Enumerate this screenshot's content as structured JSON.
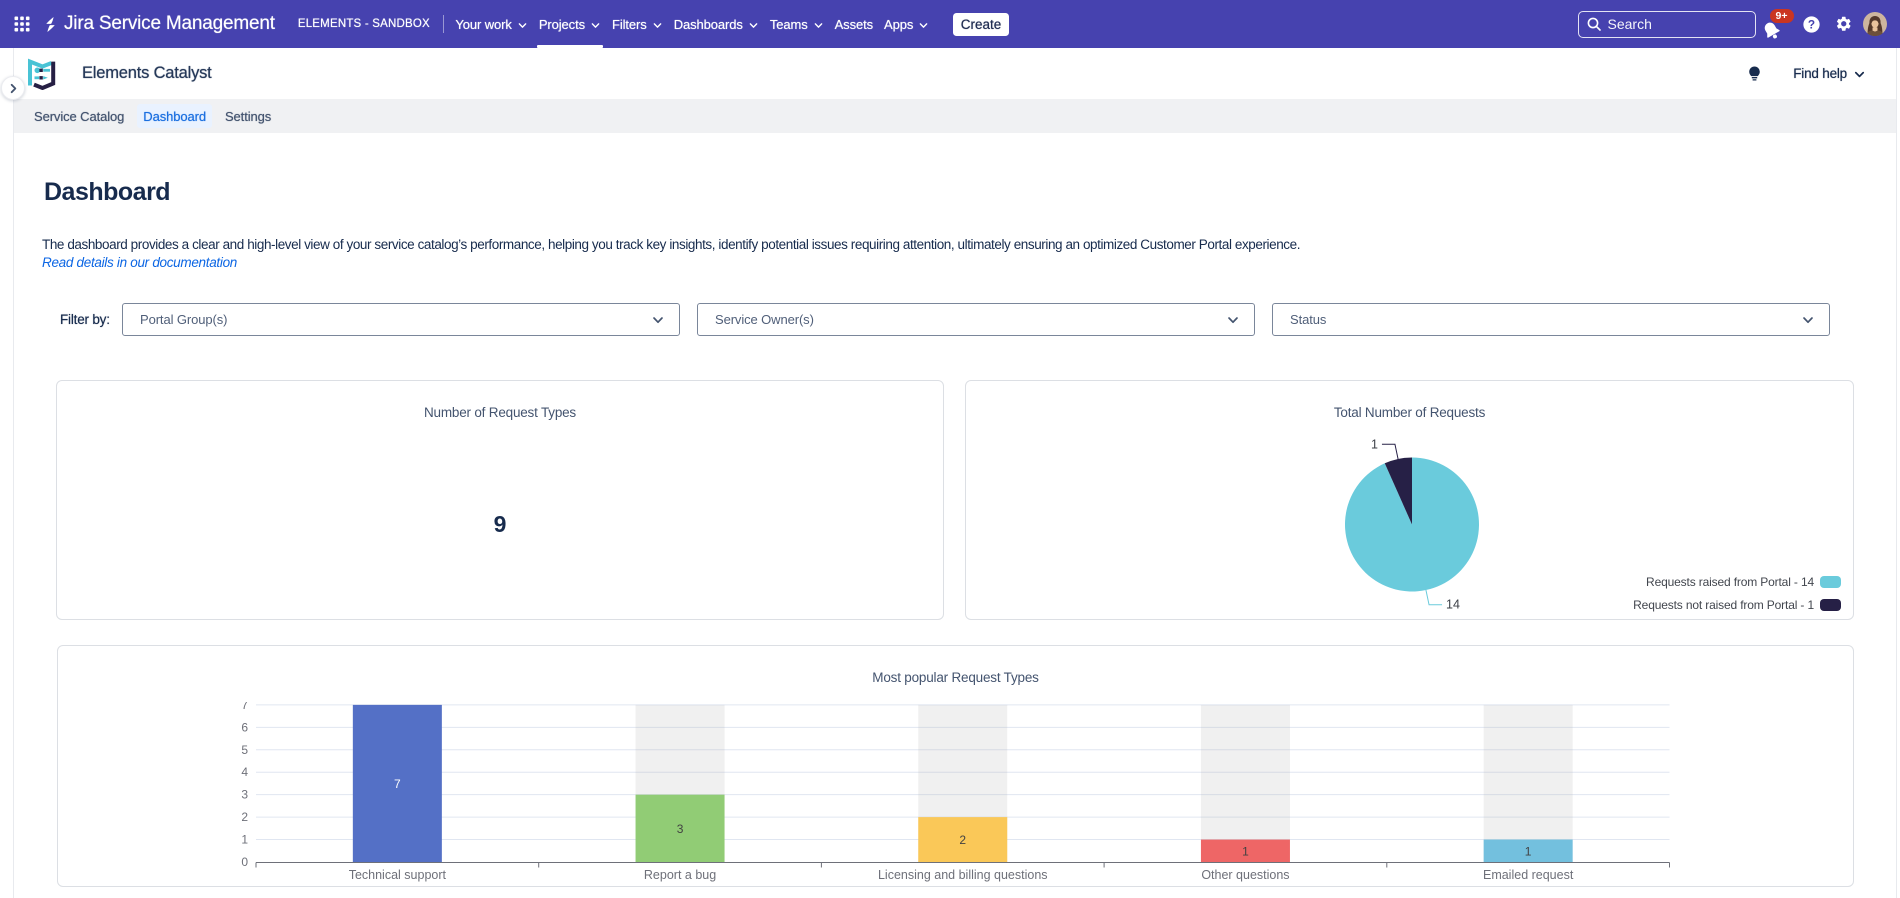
{
  "topbar": {
    "product": "Jira Service Management",
    "environment": "ELEMENTS - SANDBOX",
    "menu": [
      {
        "label": "Your work",
        "chevron": true,
        "active": false
      },
      {
        "label": "Projects",
        "chevron": true,
        "active": true
      },
      {
        "label": "Filters",
        "chevron": true,
        "active": false
      },
      {
        "label": "Dashboards",
        "chevron": true,
        "active": false
      },
      {
        "label": "Teams",
        "chevron": true,
        "active": false
      },
      {
        "label": "Assets",
        "chevron": false,
        "active": false
      },
      {
        "label": "Apps",
        "chevron": true,
        "active": false
      }
    ],
    "create_label": "Create",
    "search_placeholder": "Search",
    "notifications_badge": "9+",
    "colors": {
      "background": "#4642af",
      "badge": "#ca3521"
    }
  },
  "app_header": {
    "title": "Elements Catalyst",
    "find_help_label": "Find help"
  },
  "tabs": [
    {
      "label": "Service Catalog",
      "active": false
    },
    {
      "label": "Dashboard",
      "active": true
    },
    {
      "label": "Settings",
      "active": false
    }
  ],
  "page": {
    "title": "Dashboard",
    "description": "The dashboard provides a clear and high-level view of your service catalog’s performance, helping you track key insights, identify potential issues requiring attention, ultimately ensuring an optimized Customer Portal experience.",
    "doc_link": "Read details in our documentation"
  },
  "filters": {
    "label": "Filter by:",
    "selects": [
      "Portal Group(s)",
      "Service Owner(s)",
      "Status"
    ]
  },
  "chart_data": [
    {
      "type": "metric",
      "title": "Number of Request Types",
      "value": "9"
    },
    {
      "type": "pie",
      "title": "Total Number of Requests",
      "slices": [
        {
          "label": "Requests raised from Portal",
          "value": 14,
          "color": "#6acbdc"
        },
        {
          "label": "Requests not raised from Portal",
          "value": 1,
          "color": "#262046"
        }
      ],
      "legend": [
        {
          "text": "Requests raised from Portal - 14",
          "color": "#6acbdc"
        },
        {
          "text": "Requests not raised from Portal - 1",
          "color": "#262046"
        }
      ],
      "legend_position": "bottom-right",
      "callouts": [
        "1",
        "14"
      ]
    },
    {
      "type": "bar",
      "title": "Most popular Request Types",
      "categories": [
        "Technical support",
        "Report a bug",
        "Licensing and billing questions",
        "Other questions",
        "Emailed request"
      ],
      "values": [
        7,
        3,
        2,
        1,
        1
      ],
      "colors": [
        "#5470c6",
        "#91cc75",
        "#fac858",
        "#ee6666",
        "#73c0de"
      ],
      "value_label_colors": [
        "#ffffff",
        "#424242",
        "#424242",
        "#424242",
        "#424242"
      ],
      "ylabel": "",
      "xlabel": "",
      "ylim": [
        0,
        7
      ],
      "yticks": [
        0,
        1,
        2,
        3,
        4,
        5,
        6,
        7
      ],
      "grid": true,
      "track_color": "rgba(180,180,180,0.2)",
      "axis_color": "#6E7079",
      "grid_color": "#E0E6F1"
    }
  ]
}
